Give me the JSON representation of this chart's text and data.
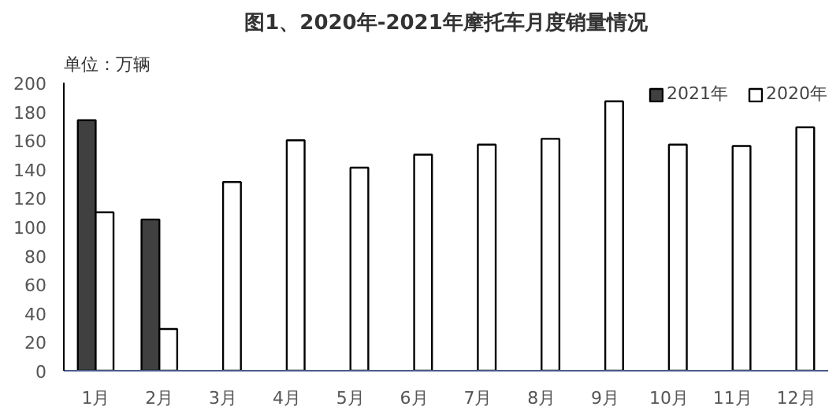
{
  "chart_data": {
    "type": "bar",
    "title": "图1、2020年-2021年摩托车月度销量情况",
    "ylabel": "单位：万辆",
    "categories": [
      "1月",
      "2月",
      "3月",
      "4月",
      "5月",
      "6月",
      "7月",
      "8月",
      "9月",
      "10月",
      "11月",
      "12月"
    ],
    "series": [
      {
        "name": "2021年",
        "color": "#404040",
        "values": [
          174,
          105,
          null,
          null,
          null,
          null,
          null,
          null,
          null,
          null,
          null,
          null
        ]
      },
      {
        "name": "2020年",
        "color": "#ffffff",
        "values": [
          110,
          29,
          131,
          160,
          141,
          150,
          157,
          161,
          187,
          157,
          156,
          169
        ]
      }
    ],
    "ylim": [
      0,
      200
    ],
    "yticks": [
      0,
      20,
      40,
      60,
      80,
      100,
      120,
      140,
      160,
      180,
      200
    ],
    "grid": false,
    "legend": "top right"
  }
}
